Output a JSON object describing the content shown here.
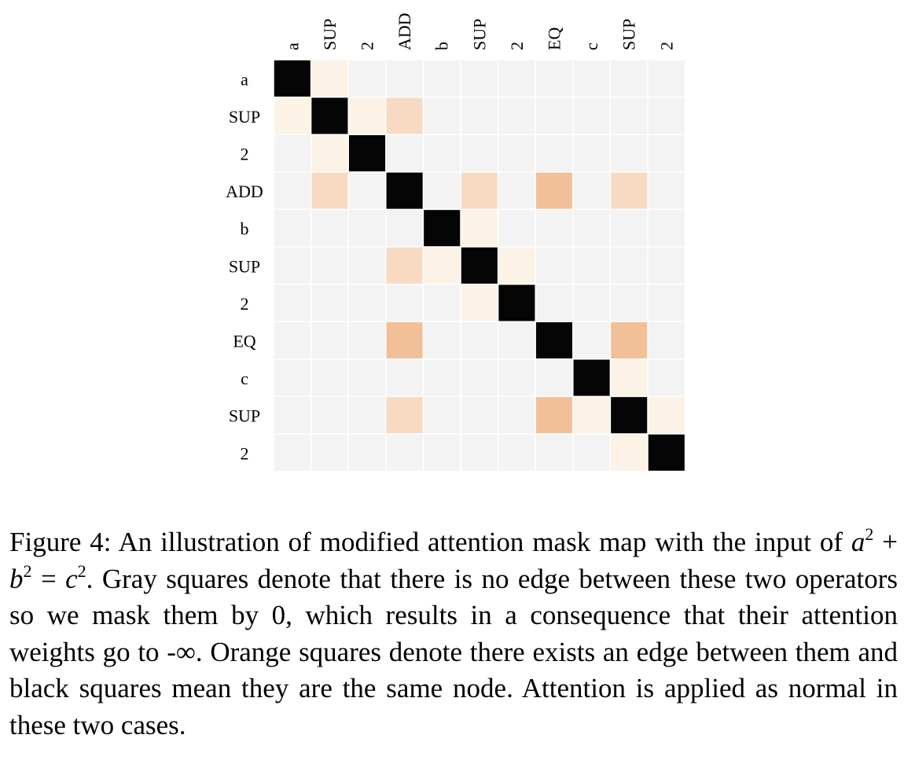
{
  "chart_data": {
    "type": "heatmap",
    "x_labels": [
      "a",
      "SUP",
      "2",
      "ADD",
      "b",
      "SUP",
      "2",
      "EQ",
      "c",
      "SUP",
      "2"
    ],
    "y_labels": [
      "a",
      "SUP",
      "2",
      "ADD",
      "b",
      "SUP",
      "2",
      "EQ",
      "c",
      "SUP",
      "2"
    ],
    "values": [
      [
        3,
        1,
        0,
        0,
        0,
        0,
        0,
        0,
        0,
        0,
        0
      ],
      [
        1,
        3,
        1,
        2,
        0,
        0,
        0,
        0,
        0,
        0,
        0
      ],
      [
        0,
        1,
        3,
        0,
        0,
        0,
        0,
        0,
        0,
        0,
        0
      ],
      [
        0,
        2,
        0,
        3,
        0,
        2,
        0,
        4,
        0,
        2,
        0
      ],
      [
        0,
        0,
        0,
        0,
        3,
        1,
        0,
        0,
        0,
        0,
        0
      ],
      [
        0,
        0,
        0,
        2,
        1,
        3,
        1,
        0,
        0,
        0,
        0
      ],
      [
        0,
        0,
        0,
        0,
        0,
        1,
        3,
        0,
        0,
        0,
        0
      ],
      [
        0,
        0,
        0,
        4,
        0,
        0,
        0,
        3,
        0,
        4,
        0
      ],
      [
        0,
        0,
        0,
        0,
        0,
        0,
        0,
        0,
        3,
        1,
        0
      ],
      [
        0,
        0,
        0,
        2,
        0,
        0,
        0,
        4,
        1,
        3,
        1
      ],
      [
        0,
        0,
        0,
        0,
        0,
        0,
        0,
        0,
        0,
        1,
        3
      ]
    ],
    "colors": {
      "0": "#f3f3f3",
      "1": "#fcf3e6",
      "2": "#f8dac3",
      "3": "#050505",
      "4": "#f1c099",
      "gridline": "#ffffff"
    },
    "legend": "none"
  },
  "caption": {
    "label": "Figure 4:",
    "seg1": "An illustration of modified attention mask map with the input of",
    "var_a": "a",
    "exp_a": "2",
    "plus": "+",
    "var_b": "b",
    "exp_b": "2",
    "equals": "=",
    "var_c": "c",
    "exp_c": "2",
    "seg2": ". Gray squares denote that there is no edge between these two operators so we mask them by 0, which results in a consequence that their attention weights go to -∞. Orange squares denote there exists an edge between them and black squares mean they are the same node. Attention is applied as normal in these two cases."
  }
}
